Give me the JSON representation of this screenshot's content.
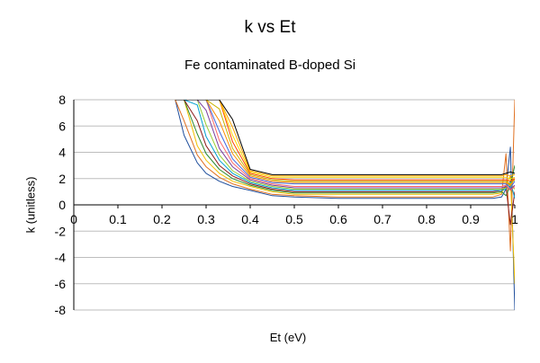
{
  "chart_data": {
    "type": "line",
    "title": "k vs Et",
    "subtitle": "Fe contaminated B-doped Si",
    "xlabel": "Et (eV)",
    "ylabel": "k (unitless)",
    "xlim": [
      0,
      1
    ],
    "ylim": [
      -8,
      8
    ],
    "x_ticks": [
      "0",
      "0.1",
      "0.2",
      "0.3",
      "0.4",
      "0.5",
      "0.6",
      "0.7",
      "0.8",
      "0.9",
      "1"
    ],
    "y_ticks": [
      "8",
      "6",
      "4",
      "2",
      "0",
      "-2",
      "-4",
      "-6",
      "-8"
    ],
    "grid": "horizontal",
    "legend": "none",
    "x": [
      0.23,
      0.25,
      0.28,
      0.3,
      0.33,
      0.36,
      0.4,
      0.45,
      0.5,
      0.6,
      0.7,
      0.8,
      0.9,
      0.95,
      0.97,
      0.98,
      0.99,
      1.0
    ],
    "series": [
      {
        "color": "#1f4e9c",
        "values": [
          8.0,
          5.3,
          3.2,
          2.4,
          1.8,
          1.4,
          1.1,
          0.7,
          0.6,
          0.5,
          0.5,
          0.5,
          0.5,
          0.5,
          0.6,
          1.2,
          4.4,
          -8.0
        ]
      },
      {
        "color": "#e07020",
        "values": [
          8.0,
          6.4,
          3.8,
          2.9,
          2.1,
          1.6,
          1.2,
          0.8,
          0.7,
          0.6,
          0.6,
          0.6,
          0.6,
          0.6,
          0.8,
          3.9,
          -3.5,
          8.0
        ]
      },
      {
        "color": "#f2c000",
        "values": [
          8.0,
          8.0,
          4.5,
          3.4,
          2.4,
          1.8,
          1.4,
          1.0,
          0.8,
          0.8,
          0.8,
          0.8,
          0.8,
          0.8,
          0.9,
          1.5,
          2.2,
          -6.0
        ]
      },
      {
        "color": "#2f8a2f",
        "values": [
          8.0,
          8.0,
          5.4,
          3.9,
          2.7,
          2.0,
          1.5,
          1.1,
          0.9,
          0.9,
          0.9,
          0.9,
          0.9,
          0.9,
          1.0,
          0.7,
          1.5,
          3.0
        ]
      },
      {
        "color": "#8b1a1a",
        "values": [
          8.0,
          8.0,
          6.4,
          4.5,
          3.0,
          2.2,
          1.6,
          1.2,
          1.0,
          1.0,
          1.0,
          1.0,
          1.0,
          1.0,
          1.1,
          1.4,
          -1.5,
          1.0
        ]
      },
      {
        "color": "#00a0d0",
        "values": [
          8.0,
          8.0,
          7.6,
          5.2,
          3.4,
          2.4,
          1.7,
          1.3,
          1.1,
          1.1,
          1.1,
          1.1,
          1.1,
          1.1,
          1.1,
          1.2,
          1.8,
          0.5
        ]
      },
      {
        "color": "#9acd32",
        "values": [
          8.0,
          8.0,
          8.0,
          6.1,
          3.8,
          2.6,
          1.8,
          1.4,
          1.2,
          1.2,
          1.2,
          1.2,
          1.2,
          1.2,
          1.2,
          1.3,
          1.6,
          1.2
        ]
      },
      {
        "color": "#7b3f9e",
        "values": [
          8.0,
          8.0,
          8.0,
          7.2,
          4.3,
          2.9,
          1.9,
          1.5,
          1.3,
          1.3,
          1.3,
          1.3,
          1.3,
          1.3,
          1.3,
          1.4,
          1.2,
          1.5
        ]
      },
      {
        "color": "#ff6a6a",
        "values": [
          8.0,
          8.0,
          8.0,
          8.0,
          4.9,
          3.2,
          2.0,
          1.6,
          1.4,
          1.4,
          1.4,
          1.4,
          1.4,
          1.4,
          1.4,
          1.5,
          1.1,
          1.4
        ]
      },
      {
        "color": "#4169e1",
        "values": [
          8.0,
          8.0,
          8.0,
          8.0,
          5.6,
          3.5,
          2.1,
          1.7,
          1.6,
          1.6,
          1.6,
          1.6,
          1.6,
          1.6,
          1.6,
          1.6,
          1.3,
          1.8
        ]
      },
      {
        "color": "#ff8c00",
        "values": [
          8.0,
          8.0,
          8.0,
          8.0,
          6.4,
          3.9,
          2.2,
          1.8,
          1.7,
          1.7,
          1.7,
          1.7,
          1.7,
          1.7,
          1.7,
          1.7,
          1.5,
          2.0
        ]
      },
      {
        "color": "#c8b400",
        "values": [
          8.0,
          8.0,
          8.0,
          8.0,
          7.3,
          4.3,
          2.3,
          1.9,
          1.8,
          1.8,
          1.8,
          1.8,
          1.8,
          1.8,
          1.8,
          1.8,
          1.6,
          1.9
        ]
      },
      {
        "color": "#ff4500",
        "values": [
          8.0,
          8.0,
          8.0,
          8.0,
          8.0,
          4.8,
          2.4,
          2.0,
          1.9,
          1.9,
          1.9,
          1.9,
          1.9,
          1.9,
          1.9,
          1.9,
          1.8,
          2.0
        ]
      },
      {
        "color": "#ffd700",
        "values": [
          8.0,
          8.0,
          8.0,
          8.0,
          8.0,
          5.3,
          2.5,
          2.1,
          2.1,
          2.1,
          2.1,
          2.1,
          2.1,
          2.1,
          2.1,
          2.1,
          2.0,
          2.1
        ]
      },
      {
        "color": "#ffa500",
        "values": [
          8.0,
          8.0,
          8.0,
          8.0,
          8.0,
          5.9,
          2.6,
          2.2,
          2.2,
          2.2,
          2.2,
          2.2,
          2.2,
          2.2,
          2.2,
          2.3,
          2.2,
          2.3
        ]
      },
      {
        "color": "#000000",
        "values": [
          8.0,
          8.0,
          8.0,
          8.0,
          8.0,
          6.5,
          2.7,
          2.3,
          2.3,
          2.3,
          2.3,
          2.3,
          2.3,
          2.3,
          2.3,
          2.4,
          2.5,
          2.4
        ]
      }
    ]
  }
}
